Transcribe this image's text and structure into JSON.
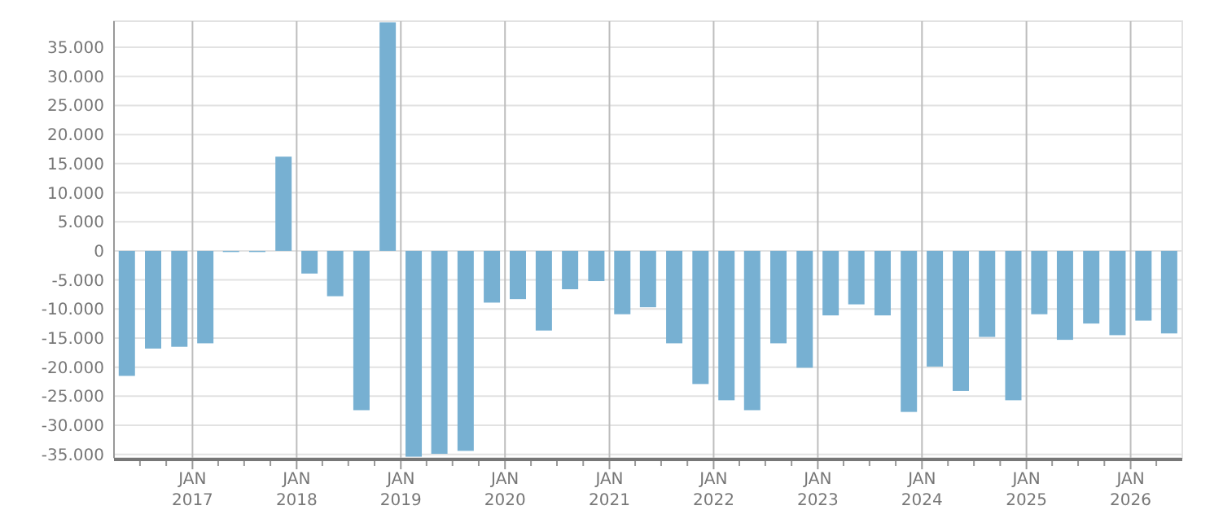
{
  "chart_data": {
    "type": "bar",
    "x": [
      "2016-05-16",
      "2016-08-16",
      "2016-11-16",
      "2017-02-15",
      "2017-05-16",
      "2017-08-16",
      "2017-11-16",
      "2018-02-15",
      "2018-05-16",
      "2018-08-16",
      "2018-11-16",
      "2019-02-15",
      "2019-05-16",
      "2019-08-16",
      "2019-11-16",
      "2020-02-15",
      "2020-05-16",
      "2020-08-16",
      "2020-11-16",
      "2021-02-15",
      "2021-05-16",
      "2021-08-16",
      "2021-11-16",
      "2022-02-15",
      "2022-05-16",
      "2022-08-16",
      "2022-11-16",
      "2023-02-15",
      "2023-05-16",
      "2023-08-16",
      "2023-11-16",
      "2024-02-15",
      "2024-05-16",
      "2024-08-16",
      "2024-11-16",
      "2025-02-15",
      "2025-05-16",
      "2025-08-16",
      "2025-11-16",
      "2026-02-15",
      "2026-05-16"
    ],
    "values": [
      -21500,
      -16800,
      -16500,
      -15900,
      -200,
      -200,
      16200,
      -3900,
      -7800,
      -27400,
      39300,
      -35400,
      -34900,
      -34400,
      -8900,
      -8300,
      -13700,
      -6600,
      -5200,
      -10900,
      -9700,
      -15900,
      -22900,
      -25700,
      -27400,
      -15900,
      -20100,
      -11100,
      -9200,
      -11100,
      -27700,
      -19900,
      -24100,
      -14800,
      -25700,
      -10900,
      -15300,
      -12500,
      -14500,
      -12000,
      -14200
    ],
    "color": "#77b0d2",
    "ylim": [
      -35600,
      39500
    ],
    "yticks": [
      {
        "value": -35000,
        "label": "-35.000"
      },
      {
        "value": -30000,
        "label": "-30.000"
      },
      {
        "value": -25000,
        "label": "-25.000"
      },
      {
        "value": -20000,
        "label": "-20.000"
      },
      {
        "value": -15000,
        "label": "-15.000"
      },
      {
        "value": -10000,
        "label": "-10.000"
      },
      {
        "value": -5000,
        "label": "-5.000"
      },
      0,
      {
        "value": 5000,
        "label": "5.000"
      },
      {
        "value": 10000,
        "label": "10.000"
      },
      {
        "value": 15000,
        "label": "15.000"
      },
      {
        "value": 20000,
        "label": "20.000"
      },
      {
        "value": 25000,
        "label": "25.000"
      },
      {
        "value": 30000,
        "label": "30.000"
      },
      {
        "value": 35000,
        "label": "35.000"
      }
    ],
    "xlim": [
      "2016-04-01",
      "2026-07-01"
    ],
    "xticks": [
      {
        "value": "2016-07-01",
        "label": null
      },
      {
        "value": "2016-10-01",
        "label": null
      },
      {
        "value": "2017-01-01",
        "label": "JAN 2017"
      },
      {
        "value": "2017-04-01",
        "label": null
      },
      {
        "value": "2017-07-01",
        "label": null
      },
      {
        "value": "2017-10-01",
        "label": null
      },
      {
        "value": "2018-01-01",
        "label": "JAN 2018"
      },
      {
        "value": "2018-04-01",
        "label": null
      },
      {
        "value": "2018-07-01",
        "label": null
      },
      {
        "value": "2018-10-01",
        "label": null
      },
      {
        "value": "2019-01-01",
        "label": "JAN 2019"
      },
      {
        "value": "2019-04-01",
        "label": null
      },
      {
        "value": "2019-07-01",
        "label": null
      },
      {
        "value": "2019-10-01",
        "label": null
      },
      {
        "value": "2020-01-01",
        "label": "JAN 2020"
      },
      {
        "value": "2020-04-01",
        "label": null
      },
      {
        "value": "2020-07-01",
        "label": null
      },
      {
        "value": "2020-10-01",
        "label": null
      },
      {
        "value": "2021-01-01",
        "label": "JAN 2021"
      },
      {
        "value": "2021-04-01",
        "label": null
      },
      {
        "value": "2021-07-01",
        "label": null
      },
      {
        "value": "2021-10-01",
        "label": null
      },
      {
        "value": "2022-01-01",
        "label": "JAN 2022"
      },
      {
        "value": "2022-04-01",
        "label": null
      },
      {
        "value": "2022-07-01",
        "label": null
      },
      {
        "value": "2022-10-01",
        "label": null
      },
      {
        "value": "2023-01-01",
        "label": "JAN 2023"
      },
      {
        "value": "2023-04-01",
        "label": null
      },
      {
        "value": "2023-07-01",
        "label": null
      },
      {
        "value": "2023-10-01",
        "label": null
      },
      {
        "value": "2024-01-01",
        "label": "JAN 2024"
      },
      {
        "value": "2024-04-01",
        "label": null
      },
      {
        "value": "2024-07-01",
        "label": null
      },
      {
        "value": "2024-10-01",
        "label": null
      },
      {
        "value": "2025-01-01",
        "label": "JAN 2025"
      },
      {
        "value": "2025-04-01",
        "label": null
      },
      {
        "value": "2025-07-01",
        "label": null
      },
      {
        "value": "2025-10-01",
        "label": null
      },
      {
        "value": "2026-01-01",
        "label": "JAN 2026"
      },
      {
        "value": "2026-04-01",
        "label": null
      }
    ],
    "grid": true
  }
}
